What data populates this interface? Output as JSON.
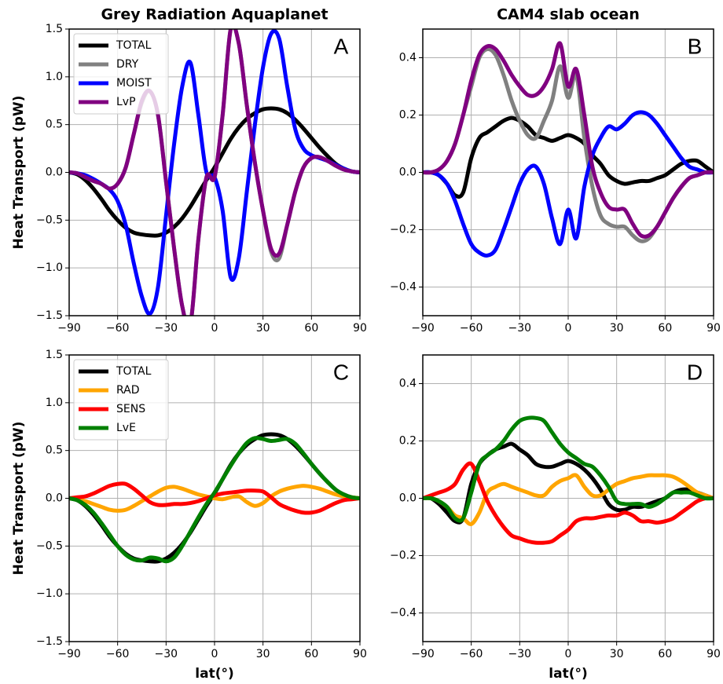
{
  "chart_data": [
    {
      "type": "line",
      "title": "Grey Radiation Aquaplanet",
      "ylabel": "Heat Transport (pW)",
      "annotation": "A",
      "legend": "upper left",
      "grid": true,
      "xlim": [
        -90,
        90
      ],
      "ylim": [
        -1.5,
        1.5
      ],
      "xticks": [
        {
          "value": -90,
          "label": "−90"
        },
        {
          "value": -60,
          "label": "−60"
        },
        {
          "value": -30,
          "label": "−30"
        },
        0,
        30,
        60,
        90
      ],
      "yticks": [
        {
          "value": -1.5,
          "label": "−1.5"
        },
        {
          "value": -1,
          "label": "−1.0"
        },
        {
          "value": -0.5,
          "label": "−0.5"
        },
        {
          "value": 0,
          "label": "0.0"
        },
        0.5,
        {
          "value": 1,
          "label": "1.0"
        },
        1.5
      ],
      "x": [
        -90,
        -85,
        -80,
        -75,
        -70,
        -65,
        -60,
        -55,
        -50,
        -45,
        -40,
        -35,
        -30,
        -25,
        -20,
        -15,
        -10,
        -5,
        0,
        5,
        10,
        15,
        20,
        25,
        30,
        35,
        40,
        45,
        50,
        55,
        60,
        65,
        70,
        75,
        80,
        85,
        90
      ],
      "series": [
        {
          "name": "TOTAL",
          "color": "#000000",
          "values": [
            0,
            -0.02,
            -0.08,
            -0.17,
            -0.28,
            -0.4,
            -0.5,
            -0.58,
            -0.63,
            -0.65,
            -0.66,
            -0.66,
            -0.63,
            -0.57,
            -0.48,
            -0.36,
            -0.22,
            -0.08,
            0.05,
            0.2,
            0.35,
            0.47,
            0.56,
            0.62,
            0.66,
            0.67,
            0.66,
            0.62,
            0.55,
            0.46,
            0.36,
            0.26,
            0.17,
            0.09,
            0.04,
            0.01,
            0
          ]
        },
        {
          "name": "DRY",
          "color": "#808080",
          "values": [
            0,
            -0.01,
            -0.05,
            -0.09,
            -0.12,
            -0.17,
            -0.12,
            0.05,
            0.4,
            0.73,
            0.85,
            0.6,
            -0.1,
            -0.8,
            -1.4,
            -1.6,
            -0.7,
            -0.05,
            -0.05,
            0.6,
            1.5,
            1.35,
            0.7,
            0.1,
            -0.4,
            -0.83,
            -0.9,
            -0.55,
            -0.2,
            0.05,
            0.15,
            0.16,
            0.12,
            0.07,
            0.03,
            0.01,
            0
          ]
        },
        {
          "name": "MOIST",
          "color": "#0000ff",
          "values": [
            0,
            -0.01,
            -0.03,
            -0.07,
            -0.12,
            -0.18,
            -0.3,
            -0.55,
            -0.95,
            -1.3,
            -1.48,
            -1.2,
            -0.45,
            0.3,
            0.9,
            1.15,
            0.6,
            0,
            -0.05,
            -0.4,
            -1.1,
            -0.9,
            -0.2,
            0.5,
            1.1,
            1.45,
            1.4,
            0.9,
            0.45,
            0.25,
            0.18,
            0.15,
            0.12,
            0.08,
            0.04,
            0.01,
            0
          ]
        },
        {
          "name": "LvP",
          "color": "#800080",
          "values": [
            0,
            -0.01,
            -0.05,
            -0.09,
            -0.12,
            -0.17,
            -0.12,
            0.05,
            0.4,
            0.75,
            0.85,
            0.6,
            -0.1,
            -0.8,
            -1.4,
            -1.6,
            -0.7,
            -0.05,
            -0.05,
            0.6,
            1.5,
            1.35,
            0.7,
            0.1,
            -0.4,
            -0.8,
            -0.85,
            -0.55,
            -0.2,
            0.05,
            0.15,
            0.16,
            0.12,
            0.07,
            0.03,
            0.01,
            0
          ]
        }
      ]
    },
    {
      "type": "line",
      "title": "CAM4 slab ocean",
      "annotation": "B",
      "grid": true,
      "xlim": [
        -90,
        90
      ],
      "ylim": [
        -0.5,
        0.5
      ],
      "xticks": [
        {
          "value": -90,
          "label": "−90"
        },
        {
          "value": -60,
          "label": "−60"
        },
        {
          "value": -30,
          "label": "−30"
        },
        0,
        30,
        60,
        90
      ],
      "yticks": [
        {
          "value": -0.4,
          "label": "−0.4"
        },
        {
          "value": -0.2,
          "label": "−0.2"
        },
        {
          "value": 0,
          "label": "0.0"
        },
        0.2,
        0.4
      ],
      "x": [
        -90,
        -85,
        -80,
        -75,
        -70,
        -65,
        -60,
        -55,
        -50,
        -45,
        -40,
        -35,
        -30,
        -25,
        -20,
        -15,
        -10,
        -5,
        0,
        5,
        10,
        15,
        20,
        25,
        30,
        35,
        40,
        45,
        50,
        55,
        60,
        65,
        70,
        75,
        80,
        85,
        90
      ],
      "series": [
        {
          "color": "#000000",
          "values": [
            0,
            0,
            -0.01,
            -0.04,
            -0.08,
            -0.07,
            0.05,
            0.12,
            0.14,
            0.16,
            0.18,
            0.19,
            0.18,
            0.16,
            0.13,
            0.12,
            0.11,
            0.12,
            0.13,
            0.12,
            0.1,
            0.06,
            0.03,
            -0.01,
            -0.03,
            -0.04,
            -0.035,
            -0.03,
            -0.03,
            -0.02,
            -0.01,
            0.01,
            0.03,
            0.04,
            0.04,
            0.02,
            0
          ]
        },
        {
          "color": "#808080",
          "values": [
            0,
            0,
            0.01,
            0.04,
            0.1,
            0.2,
            0.3,
            0.4,
            0.43,
            0.41,
            0.34,
            0.25,
            0.18,
            0.13,
            0.12,
            0.18,
            0.25,
            0.37,
            0.26,
            0.34,
            0.12,
            -0.05,
            -0.15,
            -0.18,
            -0.19,
            -0.19,
            -0.22,
            -0.24,
            -0.23,
            -0.19,
            -0.14,
            -0.09,
            -0.05,
            -0.02,
            -0.01,
            0,
            0
          ]
        },
        {
          "color": "#0000ff",
          "values": [
            0,
            0,
            -0.01,
            -0.04,
            -0.1,
            -0.18,
            -0.25,
            -0.28,
            -0.29,
            -0.27,
            -0.2,
            -0.12,
            -0.04,
            0.01,
            0.02,
            -0.04,
            -0.16,
            -0.25,
            -0.13,
            -0.23,
            -0.05,
            0.06,
            0.12,
            0.16,
            0.15,
            0.17,
            0.2,
            0.21,
            0.2,
            0.17,
            0.13,
            0.09,
            0.05,
            0.02,
            0.01,
            0,
            0
          ]
        },
        {
          "color": "#800080",
          "values": [
            0,
            0,
            0.01,
            0.04,
            0.1,
            0.2,
            0.32,
            0.41,
            0.44,
            0.43,
            0.39,
            0.34,
            0.3,
            0.27,
            0.27,
            0.3,
            0.36,
            0.45,
            0.3,
            0.36,
            0.2,
            0.02,
            -0.07,
            -0.12,
            -0.13,
            -0.13,
            -0.18,
            -0.22,
            -0.22,
            -0.19,
            -0.14,
            -0.09,
            -0.05,
            -0.02,
            -0.01,
            0,
            0
          ]
        }
      ]
    },
    {
      "type": "line",
      "ylabel": "Heat Transport (pW)",
      "xlabel": "lat(°)",
      "annotation": "C",
      "legend": "upper left",
      "grid": true,
      "xlim": [
        -90,
        90
      ],
      "ylim": [
        -1.5,
        1.5
      ],
      "xticks": [
        {
          "value": -90,
          "label": "−90"
        },
        {
          "value": -60,
          "label": "−60"
        },
        {
          "value": -30,
          "label": "−30"
        },
        0,
        30,
        60,
        90
      ],
      "yticks": [
        {
          "value": -1.5,
          "label": "−1.5"
        },
        {
          "value": -1,
          "label": "−1.0"
        },
        {
          "value": -0.5,
          "label": "−0.5"
        },
        {
          "value": 0,
          "label": "0.0"
        },
        0.5,
        {
          "value": 1,
          "label": "1.0"
        },
        1.5
      ],
      "x": [
        -90,
        -85,
        -80,
        -75,
        -70,
        -65,
        -60,
        -55,
        -50,
        -45,
        -40,
        -35,
        -30,
        -25,
        -20,
        -15,
        -10,
        -5,
        0,
        5,
        10,
        15,
        20,
        25,
        30,
        35,
        40,
        45,
        50,
        55,
        60,
        65,
        70,
        75,
        80,
        85,
        90
      ],
      "series": [
        {
          "name": "TOTAL",
          "color": "#000000",
          "values": [
            0,
            -0.02,
            -0.08,
            -0.17,
            -0.28,
            -0.4,
            -0.5,
            -0.58,
            -0.63,
            -0.65,
            -0.66,
            -0.66,
            -0.63,
            -0.57,
            -0.48,
            -0.36,
            -0.22,
            -0.08,
            0.05,
            0.2,
            0.35,
            0.47,
            0.56,
            0.62,
            0.66,
            0.67,
            0.66,
            0.62,
            0.55,
            0.46,
            0.36,
            0.26,
            0.17,
            0.09,
            0.04,
            0.01,
            0
          ]
        },
        {
          "name": "RAD",
          "color": "#ffa500",
          "values": [
            0,
            -0.01,
            -0.03,
            -0.06,
            -0.09,
            -0.12,
            -0.13,
            -0.12,
            -0.08,
            -0.03,
            0.02,
            0.07,
            0.11,
            0.12,
            0.1,
            0.07,
            0.04,
            0.02,
            0,
            -0.01,
            0.01,
            0.02,
            -0.04,
            -0.08,
            -0.05,
            0.02,
            0.07,
            0.1,
            0.12,
            0.13,
            0.12,
            0.1,
            0.07,
            0.04,
            0.02,
            0.01,
            0
          ]
        },
        {
          "name": "SENS",
          "color": "#ff0000",
          "values": [
            0,
            0.01,
            0.02,
            0.05,
            0.09,
            0.13,
            0.15,
            0.15,
            0.1,
            0.03,
            -0.04,
            -0.07,
            -0.07,
            -0.06,
            -0.06,
            -0.05,
            -0.03,
            0,
            0.03,
            0.05,
            0.06,
            0.07,
            0.08,
            0.08,
            0.07,
            0.01,
            -0.06,
            -0.1,
            -0.13,
            -0.15,
            -0.15,
            -0.13,
            -0.09,
            -0.05,
            -0.02,
            -0.01,
            0
          ]
        },
        {
          "name": "LvE",
          "color": "#008000",
          "values": [
            0,
            -0.02,
            -0.07,
            -0.15,
            -0.26,
            -0.38,
            -0.5,
            -0.59,
            -0.64,
            -0.65,
            -0.62,
            -0.63,
            -0.66,
            -0.62,
            -0.5,
            -0.35,
            -0.2,
            -0.06,
            0.06,
            0.2,
            0.34,
            0.47,
            0.58,
            0.63,
            0.62,
            0.6,
            0.61,
            0.62,
            0.57,
            0.47,
            0.36,
            0.26,
            0.17,
            0.09,
            0.04,
            0.01,
            0
          ]
        }
      ]
    },
    {
      "type": "line",
      "xlabel": "lat(°)",
      "annotation": "D",
      "grid": true,
      "xlim": [
        -90,
        90
      ],
      "ylim": [
        -0.5,
        0.5
      ],
      "xticks": [
        {
          "value": -90,
          "label": "−90"
        },
        {
          "value": -60,
          "label": "−60"
        },
        {
          "value": -30,
          "label": "−30"
        },
        0,
        30,
        60,
        90
      ],
      "yticks": [
        {
          "value": -0.4,
          "label": "−0.4"
        },
        {
          "value": -0.2,
          "label": "−0.2"
        },
        {
          "value": 0,
          "label": "0.0"
        },
        0.2,
        0.4
      ],
      "x": [
        -90,
        -85,
        -80,
        -75,
        -70,
        -65,
        -60,
        -55,
        -50,
        -45,
        -40,
        -35,
        -30,
        -25,
        -20,
        -15,
        -10,
        -5,
        0,
        5,
        10,
        15,
        20,
        25,
        30,
        35,
        40,
        45,
        50,
        55,
        60,
        65,
        70,
        75,
        80,
        85,
        90
      ],
      "series": [
        {
          "color": "#000000",
          "values": [
            0,
            0,
            -0.02,
            -0.05,
            -0.08,
            -0.07,
            0.05,
            0.12,
            0.15,
            0.17,
            0.18,
            0.19,
            0.17,
            0.15,
            0.12,
            0.11,
            0.11,
            0.12,
            0.13,
            0.12,
            0.1,
            0.07,
            0.03,
            -0.02,
            -0.04,
            -0.04,
            -0.03,
            -0.03,
            -0.02,
            -0.01,
            0,
            0.02,
            0.03,
            0.03,
            0.02,
            0.01,
            0
          ]
        },
        {
          "color": "#ffa500",
          "values": [
            0,
            0,
            -0.01,
            -0.03,
            -0.06,
            -0.07,
            -0.09,
            -0.05,
            0.02,
            0.04,
            0.05,
            0.04,
            0.03,
            0.02,
            0.01,
            0.01,
            0.04,
            0.06,
            0.07,
            0.08,
            0.04,
            0.01,
            0.01,
            0.03,
            0.05,
            0.06,
            0.07,
            0.075,
            0.08,
            0.08,
            0.08,
            0.075,
            0.06,
            0.04,
            0.02,
            0.01,
            0
          ]
        },
        {
          "color": "#ff0000",
          "values": [
            0,
            0.01,
            0.02,
            0.03,
            0.05,
            0.1,
            0.12,
            0.06,
            -0.01,
            -0.06,
            -0.1,
            -0.13,
            -0.14,
            -0.15,
            -0.155,
            -0.155,
            -0.15,
            -0.13,
            -0.11,
            -0.08,
            -0.07,
            -0.07,
            -0.065,
            -0.06,
            -0.06,
            -0.05,
            -0.06,
            -0.08,
            -0.08,
            -0.085,
            -0.08,
            -0.07,
            -0.05,
            -0.03,
            -0.01,
            0,
            0
          ]
        },
        {
          "color": "#008000",
          "values": [
            0,
            0,
            -0.01,
            -0.03,
            -0.07,
            -0.07,
            0.02,
            0.12,
            0.15,
            0.17,
            0.2,
            0.24,
            0.27,
            0.28,
            0.28,
            0.27,
            0.23,
            0.19,
            0.16,
            0.14,
            0.12,
            0.11,
            0.08,
            0.04,
            -0.01,
            -0.02,
            -0.02,
            -0.02,
            -0.03,
            -0.02,
            0,
            0.02,
            0.02,
            0.02,
            0.01,
            0,
            0
          ]
        }
      ]
    }
  ]
}
